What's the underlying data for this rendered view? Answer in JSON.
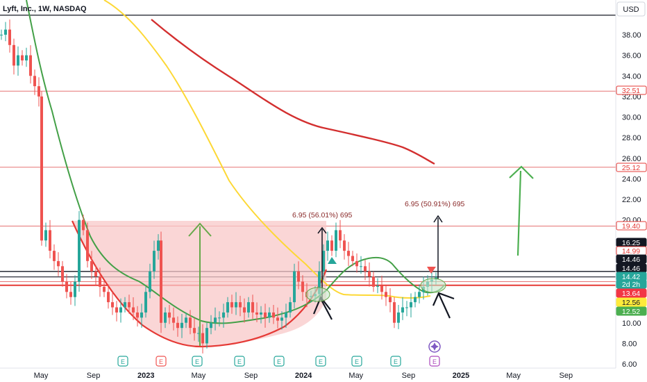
{
  "symbol_header": "Lyft, Inc., 1W, NASDAQ",
  "currency_button": "USD",
  "chart_data": {
    "type": "candlestick",
    "title": "Lyft, Inc., 1W, NASDAQ",
    "y_ticks": [
      "6.00",
      "8.00",
      "10.00",
      "12.00",
      "14.00",
      "16.00",
      "18.00",
      "20.00",
      "22.00",
      "24.00",
      "26.00",
      "28.00",
      "30.00",
      "32.00",
      "34.00",
      "36.00",
      "38.00"
    ],
    "x_ticks": [
      "May",
      "Sep",
      "2023",
      "May",
      "Sep",
      "2024",
      "May",
      "Sep",
      "2025",
      "May",
      "Sep"
    ],
    "x_tick_dates": [
      "2022-05",
      "2022-09",
      "2023-01",
      "2023-05",
      "2023-09",
      "2024-01",
      "2024-05",
      "2024-09",
      "2025-01",
      "2025-05",
      "2025-09"
    ],
    "ylim": [
      5.6,
      41.5
    ],
    "price_labels": [
      {
        "text": "32.51",
        "value": 32.51,
        "bg": "#ffffff",
        "fg": "#e53935",
        "border": "#e53935"
      },
      {
        "text": "25.12",
        "value": 25.12,
        "bg": "#ffffff",
        "fg": "#e53935",
        "border": "#e53935"
      },
      {
        "text": "19.40",
        "value": 19.4,
        "bg": "#ffffff",
        "fg": "#e53935",
        "border": "#e53935"
      },
      {
        "text": "16.25",
        "value": 16.25,
        "bg": "#131722",
        "fg": "#ffffff",
        "border": "#131722"
      },
      {
        "text": "14.99",
        "value": 14.99,
        "bg": "#ffffff",
        "fg": "#e53935",
        "border": "#e53935"
      },
      {
        "text": "14.46",
        "value": 14.46,
        "bg": "#131722",
        "fg": "#ffffff",
        "border": "#131722"
      },
      {
        "text": "14.46",
        "value": 14.46,
        "bg": "#131722",
        "fg": "#ffffff",
        "border": "#131722"
      },
      {
        "text": "14.42",
        "value": 14.42,
        "bg": "#26a69a",
        "fg": "#ffffff",
        "border": "#26a69a"
      },
      {
        "text": "2d 2h",
        "value": 14.42,
        "bg": "#26a69a",
        "fg": "#ffffff",
        "border": "#26a69a"
      },
      {
        "text": "13.64",
        "value": 13.64,
        "bg": "#f23645",
        "fg": "#ffffff",
        "border": "#f23645"
      },
      {
        "text": "12.56",
        "value": 12.56,
        "bg": "#ffeb3b",
        "fg": "#131722",
        "border": "#ffeb3b"
      },
      {
        "text": "12.52",
        "value": 12.52,
        "bg": "#4caf50",
        "fg": "#ffffff",
        "border": "#4caf50"
      }
    ],
    "horizontal_lines": [
      {
        "value": 39.9,
        "color": "#131722",
        "width": 1.2
      },
      {
        "value": 32.51,
        "color": "#e57373",
        "width": 1
      },
      {
        "value": 25.12,
        "color": "#e57373",
        "width": 1
      },
      {
        "value": 19.4,
        "color": "#e57373",
        "width": 1
      },
      {
        "value": 14.99,
        "color": "#131722",
        "width": 1.3
      },
      {
        "value": 14.46,
        "color": "#131722",
        "width": 1.1
      },
      {
        "value": 14.0,
        "color": "#e57373",
        "width": 1
      },
      {
        "value": 13.64,
        "color": "#e53935",
        "width": 2
      }
    ],
    "annotations": [
      {
        "text": "6.95 (56.01%) 695"
      },
      {
        "text": "6.95 (50.91%) 695"
      }
    ],
    "earnings_markers": [
      "E",
      "E",
      "E",
      "E",
      "E",
      "E",
      "E",
      "E",
      "E"
    ],
    "colors": {
      "up": "#26a69a",
      "down": "#ef5350",
      "ma_green": "#43a047",
      "ma_yellow": "#ffeb3b",
      "ma_red": "#d32f2f",
      "cup_fill": "#f8bbbb"
    }
  }
}
